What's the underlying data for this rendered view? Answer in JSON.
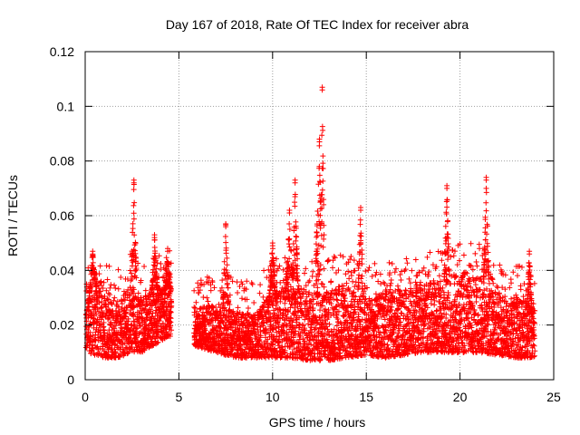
{
  "chart_data": {
    "type": "scatter",
    "title": "Day 167 of 2018, Rate Of TEC Index for receiver abra",
    "xlabel": "GPS time / hours",
    "ylabel": "ROTI / TECUs",
    "xlim": [
      0,
      25
    ],
    "ylim": [
      0,
      0.12
    ],
    "x_ticks": [
      0,
      5,
      10,
      15,
      20,
      25
    ],
    "x_tick_labels": [
      "0",
      "5",
      "10",
      "15",
      "20",
      "25"
    ],
    "y_ticks": [
      0,
      0.02,
      0.04,
      0.06,
      0.08,
      0.1,
      0.12
    ],
    "y_tick_labels": [
      "0",
      "0.02",
      "0.04",
      "0.06",
      "0.08",
      "0.1",
      "0.12"
    ],
    "grid": true,
    "marker": "+",
    "series_color": "#ff0000",
    "data_description": "Dense ROTI scatter sampled every ~30 s for 0-24 h; values mostly 0.007-0.045 TECU, gap from ~4.6 h to ~5.8 h, peaks listed below.",
    "envelope": [
      {
        "x": 0.0,
        "low": 0.01,
        "high": 0.026
      },
      {
        "x": 0.5,
        "low": 0.009,
        "high": 0.04
      },
      {
        "x": 1.0,
        "low": 0.008,
        "high": 0.032
      },
      {
        "x": 1.5,
        "low": 0.008,
        "high": 0.028
      },
      {
        "x": 2.0,
        "low": 0.008,
        "high": 0.03
      },
      {
        "x": 2.5,
        "low": 0.01,
        "high": 0.035
      },
      {
        "x": 3.0,
        "low": 0.01,
        "high": 0.03
      },
      {
        "x": 3.5,
        "low": 0.012,
        "high": 0.032
      },
      {
        "x": 4.0,
        "low": 0.014,
        "high": 0.034
      },
      {
        "x": 4.5,
        "low": 0.016,
        "high": 0.036
      },
      {
        "x": 6.0,
        "low": 0.012,
        "high": 0.026
      },
      {
        "x": 7.0,
        "low": 0.01,
        "high": 0.028
      },
      {
        "x": 8.0,
        "low": 0.008,
        "high": 0.025
      },
      {
        "x": 9.0,
        "low": 0.008,
        "high": 0.024
      },
      {
        "x": 10.0,
        "low": 0.008,
        "high": 0.032
      },
      {
        "x": 11.0,
        "low": 0.008,
        "high": 0.035
      },
      {
        "x": 12.0,
        "low": 0.007,
        "high": 0.032
      },
      {
        "x": 13.0,
        "low": 0.007,
        "high": 0.033
      },
      {
        "x": 14.0,
        "low": 0.008,
        "high": 0.036
      },
      {
        "x": 15.0,
        "low": 0.009,
        "high": 0.03
      },
      {
        "x": 16.0,
        "low": 0.008,
        "high": 0.032
      },
      {
        "x": 17.0,
        "low": 0.009,
        "high": 0.033
      },
      {
        "x": 18.0,
        "low": 0.01,
        "high": 0.036
      },
      {
        "x": 19.0,
        "low": 0.01,
        "high": 0.036
      },
      {
        "x": 20.0,
        "low": 0.01,
        "high": 0.04
      },
      {
        "x": 21.0,
        "low": 0.01,
        "high": 0.038
      },
      {
        "x": 22.0,
        "low": 0.009,
        "high": 0.032
      },
      {
        "x": 23.0,
        "low": 0.008,
        "high": 0.03
      },
      {
        "x": 24.0,
        "low": 0.008,
        "high": 0.028
      }
    ],
    "gap": [
      4.6,
      5.8
    ],
    "peaks": [
      {
        "x": 0.4,
        "y": 0.047,
        "spread": 0.25
      },
      {
        "x": 2.6,
        "y": 0.073,
        "spread": 0.15
      },
      {
        "x": 3.7,
        "y": 0.053,
        "spread": 0.2
      },
      {
        "x": 4.4,
        "y": 0.048,
        "spread": 0.2
      },
      {
        "x": 7.5,
        "y": 0.057,
        "spread": 0.15
      },
      {
        "x": 10.0,
        "y": 0.05,
        "spread": 0.2
      },
      {
        "x": 10.9,
        "y": 0.062,
        "spread": 0.2
      },
      {
        "x": 11.2,
        "y": 0.073,
        "spread": 0.15
      },
      {
        "x": 12.5,
        "y": 0.088,
        "spread": 0.2
      },
      {
        "x": 12.65,
        "y": 0.107,
        "spread": 0.1
      },
      {
        "x": 14.7,
        "y": 0.063,
        "spread": 0.15
      },
      {
        "x": 19.3,
        "y": 0.071,
        "spread": 0.15
      },
      {
        "x": 21.4,
        "y": 0.074,
        "spread": 0.15
      },
      {
        "x": 23.7,
        "y": 0.047,
        "spread": 0.15
      }
    ]
  }
}
